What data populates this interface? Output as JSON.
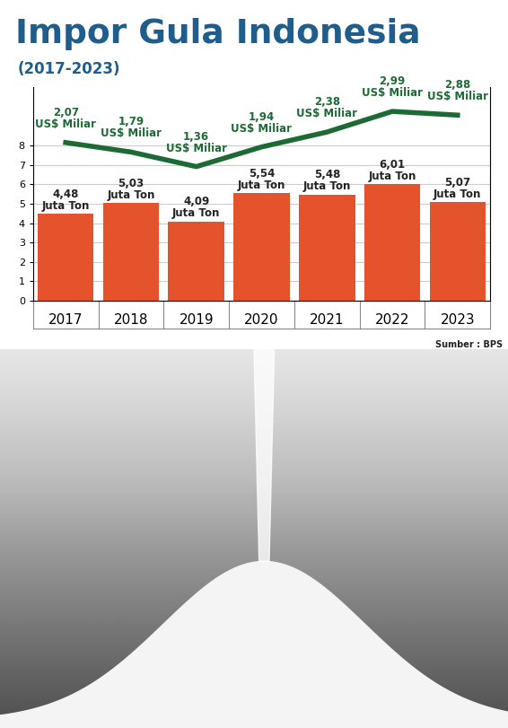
{
  "chart_data": {
    "type": "bar",
    "title": "Impor Gula Indonesia",
    "subtitle": "(2017-2023)",
    "source": "Sumber : BPS",
    "categories": [
      "2017",
      "2018",
      "2019",
      "2020",
      "2021",
      "2022",
      "2023"
    ],
    "ylim": [
      0,
      11
    ],
    "yticks": [
      0,
      1,
      2,
      3,
      4,
      5,
      6,
      7,
      8
    ],
    "y2lim": [
      -2.6,
      3.7
    ],
    "y2ticks": [],
    "grid": true,
    "series": [
      {
        "type": "bar",
        "color": "#e4532b",
        "data_labels": true,
        "values": [
          4.48,
          5.03,
          4.09,
          5.54,
          5.48,
          6.01,
          5.07
        ],
        "value_labels": [
          "4,48\nJuta Ton",
          "5,03\nJuta Ton",
          "4,09\nJuta Ton",
          "5,54\nJuta Ton",
          "5,48\nJuta Ton",
          "6,01\nJuta Ton",
          "5,07\nJuta Ton"
        ]
      },
      {
        "type": "line",
        "axis": "y2",
        "color": "#1d6a35",
        "data_labels": true,
        "values": [
          2.07,
          1.79,
          1.36,
          1.94,
          2.38,
          2.99,
          2.88
        ],
        "value_labels": [
          "2,07\nUS$ Miliar",
          "1,79\nUS$ Miliar",
          "1,36\nUS$ Miliar",
          "1,94\nUS$ Miliar",
          "2,38\nUS$ Miliar",
          "2,99\nUS$ Miliar",
          "2,88\nUS$ Miliar"
        ]
      }
    ]
  }
}
